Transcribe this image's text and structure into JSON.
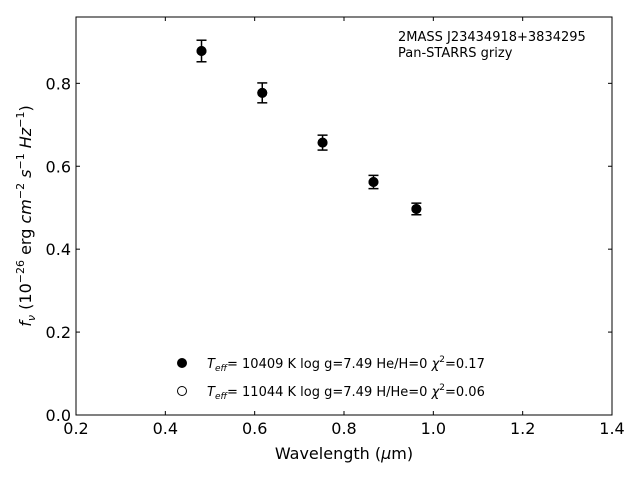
{
  "chart_data": {
    "type": "scatter",
    "xlabel": {
      "pre": "Wavelength (",
      "mu": "μ",
      "post": "m)"
    },
    "ylabel": {
      "f": "f",
      "nu": "ν",
      "rest": " (10",
      "e1": "−26",
      "erg": " erg ",
      "cm": "cm",
      "e2": "−2",
      "s": " s",
      "e3": "−1",
      "hz": " Hz",
      "e4": "−1",
      "close": ")"
    },
    "xlim": [
      0.2,
      1.4
    ],
    "ylim": [
      0.0,
      0.96
    ],
    "xticks": [
      0.2,
      0.4,
      0.6,
      0.8,
      1.0,
      1.2,
      1.4
    ],
    "xtick_labels": [
      "0.2",
      "0.4",
      "0.6",
      "0.8",
      "1.0",
      "1.2",
      "1.4"
    ],
    "yticks": [
      0.0,
      0.2,
      0.4,
      0.6,
      0.8
    ],
    "ytick_labels": [
      "0.0",
      "0.2",
      "0.4",
      "0.6",
      "0.8"
    ],
    "grid": false,
    "annotation": [
      "2MASS J23434918+3834295",
      "Pan-STARRS grizy"
    ],
    "points": [
      {
        "x": 0.481,
        "y": 0.878,
        "err": 0.026
      },
      {
        "x": 0.617,
        "y": 0.777,
        "err": 0.024
      },
      {
        "x": 0.752,
        "y": 0.657,
        "err": 0.018
      },
      {
        "x": 0.866,
        "y": 0.562,
        "err": 0.016
      },
      {
        "x": 0.962,
        "y": 0.497,
        "err": 0.014
      }
    ],
    "legend": [
      {
        "marker": "filled-circle",
        "t": "T",
        "eff": "eff",
        "text": "= 10409 K  log g=7.49  He/H=0  ",
        "chi": "χ",
        "sq": "2",
        "chitext": "=0.17"
      },
      {
        "marker": "open-circle",
        "t": "T",
        "eff": "eff",
        "text": "= 11044 K  log g=7.49  H/He=0  ",
        "chi": "χ",
        "sq": "2",
        "chitext": "=0.06"
      }
    ]
  }
}
